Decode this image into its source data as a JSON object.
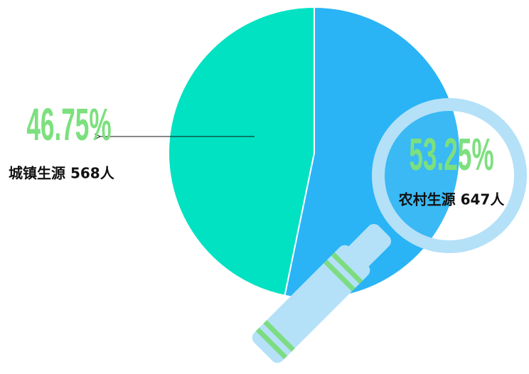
{
  "chart_data": {
    "type": "pie",
    "categories": [
      "农村生源 647人",
      "城镇生源 568人"
    ],
    "values": [
      53.25,
      46.75
    ],
    "value_labels": [
      "53.25%",
      "46.75%"
    ],
    "colors": [
      "#2ab4f5",
      "#00e2c2"
    ]
  }
}
